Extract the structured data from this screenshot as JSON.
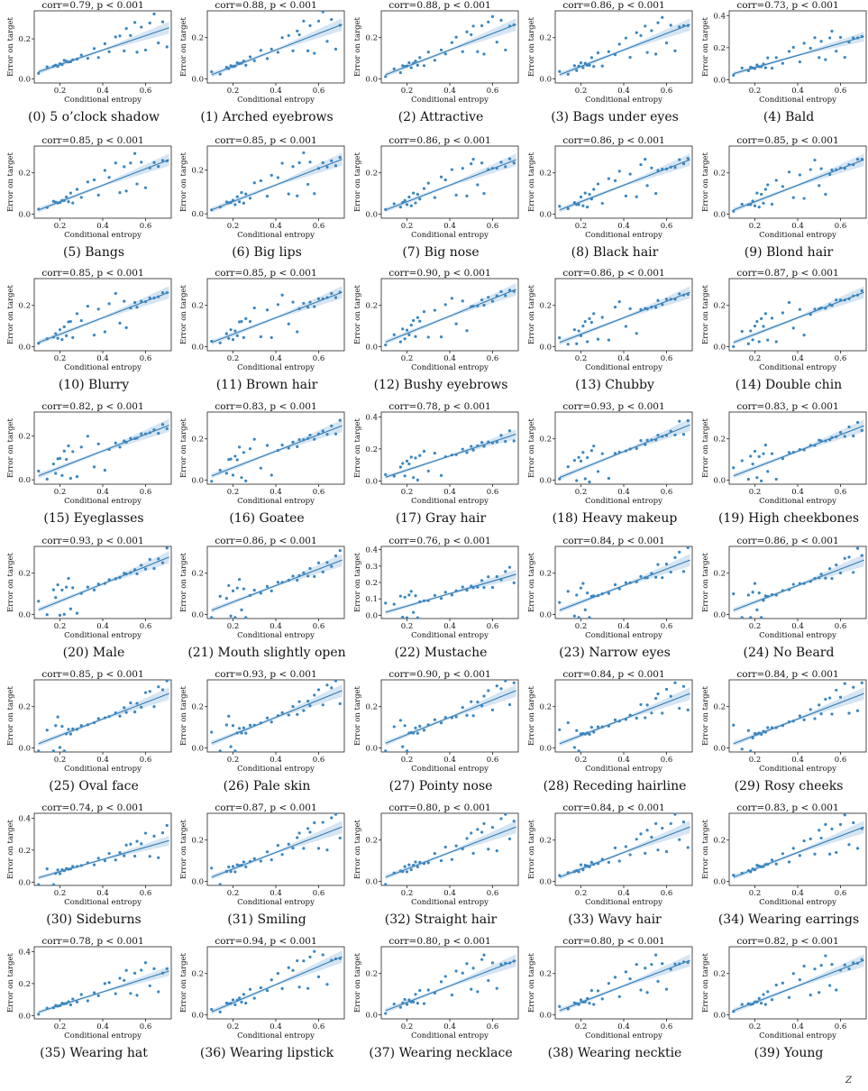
{
  "colors": {
    "points": "#3b86bf",
    "line": "#2f7bb5",
    "band": "#cfe0f1",
    "axis": "#222222"
  },
  "common": {
    "xlabel": "Conditional entropy",
    "ylabel": "Error on target",
    "stat_prefix": "corr=",
    "stat_p": ", p < 0.001",
    "xlim": [
      0.08,
      0.72
    ],
    "xticks": [
      0.2,
      0.4,
      0.6
    ],
    "xtick_labels": [
      "0.2",
      "0.4",
      "0.6"
    ],
    "ylim": [
      -0.02,
      0.33
    ],
    "yticks": [
      0.0,
      0.2
    ],
    "ytick_labels": [
      "0.0",
      "0.2"
    ]
  },
  "chart_data": [
    {
      "type": "scatter",
      "index": "0",
      "title": "(0) 5 o’clock shadow",
      "corr": "0.79",
      "ylim": [
        -0.02,
        0.34
      ],
      "fit": {
        "slope": 0.36,
        "intercept": 0.0
      }
    },
    {
      "type": "scatter",
      "index": "1",
      "title": "(1) Arched eyebrows",
      "corr": "0.88",
      "ylim": [
        -0.02,
        0.33
      ],
      "fit": {
        "slope": 0.4,
        "intercept": -0.02
      }
    },
    {
      "type": "scatter",
      "index": "2",
      "title": "(2) Attractive",
      "corr": "0.88",
      "ylim": [
        -0.02,
        0.33
      ],
      "fit": {
        "slope": 0.4,
        "intercept": -0.02
      }
    },
    {
      "type": "scatter",
      "index": "3",
      "title": "(3) Bags under eyes",
      "corr": "0.86",
      "ylim": [
        -0.02,
        0.33
      ],
      "fit": {
        "slope": 0.4,
        "intercept": -0.02
      }
    },
    {
      "type": "scatter",
      "index": "4",
      "title": "(4) Bald",
      "corr": "0.73",
      "ylim": [
        -0.02,
        0.43
      ],
      "yticks": [
        0.0,
        0.2,
        0.4
      ],
      "ytick_labels": [
        "0.0",
        "0.2",
        "0.4"
      ],
      "fit": {
        "slope": 0.38,
        "intercept": 0.0
      }
    },
    {
      "type": "scatter",
      "index": "5",
      "title": "(5) Bangs",
      "corr": "0.85",
      "ylim": [
        -0.02,
        0.33
      ],
      "fit": {
        "slope": 0.4,
        "intercept": -0.02
      }
    },
    {
      "type": "scatter",
      "index": "6",
      "title": "(6) Big lips",
      "corr": "0.85",
      "ylim": [
        -0.02,
        0.31
      ],
      "fit": {
        "slope": 0.38,
        "intercept": -0.02
      }
    },
    {
      "type": "scatter",
      "index": "7",
      "title": "(7) Big nose",
      "corr": "0.86",
      "ylim": [
        -0.02,
        0.33
      ],
      "fit": {
        "slope": 0.4,
        "intercept": -0.02
      }
    },
    {
      "type": "scatter",
      "index": "8",
      "title": "(8) Black hair",
      "corr": "0.86",
      "ylim": [
        -0.02,
        0.33
      ],
      "fit": {
        "slope": 0.4,
        "intercept": -0.02
      }
    },
    {
      "type": "scatter",
      "index": "9",
      "title": "(9) Blond hair",
      "corr": "0.85",
      "ylim": [
        -0.02,
        0.33
      ],
      "fit": {
        "slope": 0.4,
        "intercept": -0.02
      }
    },
    {
      "type": "scatter",
      "index": "10",
      "title": "(10) Blurry",
      "corr": "0.85",
      "ylim": [
        -0.02,
        0.33
      ],
      "fit": {
        "slope": 0.4,
        "intercept": -0.02
      }
    },
    {
      "type": "scatter",
      "index": "11",
      "title": "(11) Brown hair",
      "corr": "0.85",
      "ylim": [
        -0.02,
        0.33
      ],
      "fit": {
        "slope": 0.4,
        "intercept": -0.02
      }
    },
    {
      "type": "scatter",
      "index": "12",
      "title": "(12) Bushy eyebrows",
      "corr": "0.90",
      "ylim": [
        -0.02,
        0.33
      ],
      "fit": {
        "slope": 0.42,
        "intercept": -0.02
      }
    },
    {
      "type": "scatter",
      "index": "13",
      "title": "(13) Chubby",
      "corr": "0.86",
      "ylim": [
        -0.02,
        0.33
      ],
      "fit": {
        "slope": 0.4,
        "intercept": -0.02
      }
    },
    {
      "type": "scatter",
      "index": "14",
      "title": "(14) Double chin",
      "corr": "0.87",
      "ylim": [
        -0.02,
        0.33
      ],
      "fit": {
        "slope": 0.4,
        "intercept": -0.02
      }
    },
    {
      "type": "scatter",
      "index": "15",
      "title": "(15) Eyeglasses",
      "corr": "0.82",
      "ylim": [
        -0.02,
        0.31
      ],
      "fit": {
        "slope": 0.38,
        "intercept": -0.02
      }
    },
    {
      "type": "scatter",
      "index": "16",
      "title": "(16) Goatee",
      "corr": "0.83",
      "ylim": [
        -0.02,
        0.33
      ],
      "fit": {
        "slope": 0.4,
        "intercept": -0.02
      }
    },
    {
      "type": "scatter",
      "index": "17",
      "title": "(17) Gray hair",
      "corr": "0.78",
      "ylim": [
        -0.02,
        0.43
      ],
      "yticks": [
        0.0,
        0.2,
        0.4
      ],
      "ytick_labels": [
        "0.0",
        "0.2",
        "0.4"
      ],
      "fit": {
        "slope": 0.44,
        "intercept": -0.02
      }
    },
    {
      "type": "scatter",
      "index": "18",
      "title": "(18) Heavy makeup",
      "corr": "0.93",
      "ylim": [
        -0.02,
        0.33
      ],
      "fit": {
        "slope": 0.42,
        "intercept": -0.03
      }
    },
    {
      "type": "scatter",
      "index": "19",
      "title": "(19) High cheekbones",
      "corr": "0.83",
      "ylim": [
        -0.02,
        0.33
      ],
      "fit": {
        "slope": 0.4,
        "intercept": -0.02
      }
    },
    {
      "type": "scatter",
      "index": "20",
      "title": "(20) Male",
      "corr": "0.93",
      "ylim": [
        -0.02,
        0.33
      ],
      "fit": {
        "slope": 0.42,
        "intercept": -0.02
      }
    },
    {
      "type": "scatter",
      "index": "21",
      "title": "(21) Mouth slightly open",
      "corr": "0.86",
      "ylim": [
        -0.02,
        0.33
      ],
      "fit": {
        "slope": 0.4,
        "intercept": -0.02
      }
    },
    {
      "type": "scatter",
      "index": "22",
      "title": "(22) Mustache",
      "corr": "0.76",
      "ylim": [
        -0.02,
        0.42
      ],
      "yticks": [
        0.0,
        0.1,
        0.2,
        0.3,
        0.4
      ],
      "ytick_labels": [
        "0.0",
        "0.1",
        "0.2",
        "0.3",
        "0.4"
      ],
      "fit": {
        "slope": 0.38,
        "intercept": -0.02
      }
    },
    {
      "type": "scatter",
      "index": "23",
      "title": "(23) Narrow eyes",
      "corr": "0.84",
      "ylim": [
        -0.02,
        0.33
      ],
      "fit": {
        "slope": 0.4,
        "intercept": -0.02
      }
    },
    {
      "type": "scatter",
      "index": "24",
      "title": "(24) No Beard",
      "corr": "0.86",
      "ylim": [
        -0.02,
        0.33
      ],
      "fit": {
        "slope": 0.4,
        "intercept": -0.02
      }
    },
    {
      "type": "scatter",
      "index": "25",
      "title": "(25) Oval face",
      "corr": "0.85",
      "ylim": [
        -0.02,
        0.33
      ],
      "fit": {
        "slope": 0.4,
        "intercept": -0.02
      }
    },
    {
      "type": "scatter",
      "index": "26",
      "title": "(26) Pale skin",
      "corr": "0.93",
      "ylim": [
        -0.02,
        0.33
      ],
      "fit": {
        "slope": 0.42,
        "intercept": -0.02
      }
    },
    {
      "type": "scatter",
      "index": "27",
      "title": "(27) Pointy nose",
      "corr": "0.90",
      "ylim": [
        -0.02,
        0.33
      ],
      "fit": {
        "slope": 0.42,
        "intercept": -0.02
      }
    },
    {
      "type": "scatter",
      "index": "28",
      "title": "(28) Receding hairline",
      "corr": "0.84",
      "ylim": [
        -0.02,
        0.33
      ],
      "fit": {
        "slope": 0.4,
        "intercept": -0.02
      }
    },
    {
      "type": "scatter",
      "index": "29",
      "title": "(29) Rosy cheeks",
      "corr": "0.84",
      "ylim": [
        -0.02,
        0.33
      ],
      "fit": {
        "slope": 0.4,
        "intercept": -0.02
      }
    },
    {
      "type": "scatter",
      "index": "30",
      "title": "(30) Sideburns",
      "corr": "0.74",
      "ylim": [
        -0.02,
        0.43
      ],
      "yticks": [
        0.0,
        0.2,
        0.4
      ],
      "ytick_labels": [
        "0.0",
        "0.2",
        "0.4"
      ],
      "fit": {
        "slope": 0.38,
        "intercept": -0.01
      }
    },
    {
      "type": "scatter",
      "index": "31",
      "title": "(31) Smiling",
      "corr": "0.87",
      "ylim": [
        -0.02,
        0.33
      ],
      "fit": {
        "slope": 0.4,
        "intercept": -0.02
      }
    },
    {
      "type": "scatter",
      "index": "32",
      "title": "(32) Straight hair",
      "corr": "0.80",
      "ylim": [
        -0.02,
        0.33
      ],
      "fit": {
        "slope": 0.4,
        "intercept": -0.02
      }
    },
    {
      "type": "scatter",
      "index": "33",
      "title": "(33) Wavy hair",
      "corr": "0.84",
      "ylim": [
        -0.02,
        0.33
      ],
      "fit": {
        "slope": 0.4,
        "intercept": -0.02
      }
    },
    {
      "type": "scatter",
      "index": "34",
      "title": "(34) Wearing earrings",
      "corr": "0.83",
      "ylim": [
        -0.02,
        0.33
      ],
      "fit": {
        "slope": 0.4,
        "intercept": -0.02
      }
    },
    {
      "type": "scatter",
      "index": "35",
      "title": "(35) Wearing hat",
      "corr": "0.78",
      "ylim": [
        -0.02,
        0.43
      ],
      "yticks": [
        0.0,
        0.2,
        0.4
      ],
      "ytick_labels": [
        "0.0",
        "0.2",
        "0.4"
      ],
      "fit": {
        "slope": 0.42,
        "intercept": -0.02
      }
    },
    {
      "type": "scatter",
      "index": "36",
      "title": "(36) Wearing lipstick",
      "corr": "0.94",
      "ylim": [
        -0.02,
        0.33
      ],
      "fit": {
        "slope": 0.44,
        "intercept": -0.03
      }
    },
    {
      "type": "scatter",
      "index": "37",
      "title": "(37) Wearing necklace",
      "corr": "0.80",
      "ylim": [
        -0.02,
        0.33
      ],
      "fit": {
        "slope": 0.4,
        "intercept": -0.02
      }
    },
    {
      "type": "scatter",
      "index": "38",
      "title": "(38) Wearing necktie",
      "corr": "0.80",
      "ylim": [
        -0.02,
        0.33
      ],
      "fit": {
        "slope": 0.4,
        "intercept": -0.02
      }
    },
    {
      "type": "scatter",
      "index": "39",
      "title": "(39) Young",
      "corr": "0.82",
      "ylim": [
        -0.02,
        0.33
      ],
      "fit": {
        "slope": 0.4,
        "intercept": -0.02
      }
    }
  ],
  "scatter_x": [
    0.1,
    0.14,
    0.17,
    0.18,
    0.19,
    0.2,
    0.21,
    0.22,
    0.23,
    0.24,
    0.25,
    0.26,
    0.28,
    0.3,
    0.33,
    0.36,
    0.38,
    0.41,
    0.43,
    0.46,
    0.48,
    0.5,
    0.51,
    0.53,
    0.55,
    0.56,
    0.58,
    0.6,
    0.62,
    0.64,
    0.66,
    0.68,
    0.7
  ],
  "scatter_resid": [
    0.0,
    0.01,
    -0.005,
    0.008,
    -0.01,
    0.012,
    -0.004,
    0.006,
    0.01,
    -0.006,
    0.004,
    0.002,
    -0.01,
    0.015,
    -0.02,
    0.03,
    -0.03,
    0.02,
    -0.015,
    0.04,
    0.05,
    -0.04,
    0.06,
    0.03,
    0.08,
    -0.06,
    0.05,
    -0.08,
    0.06,
    0.09,
    -0.05,
    0.04,
    -0.1
  ],
  "footer_mark": "Z"
}
